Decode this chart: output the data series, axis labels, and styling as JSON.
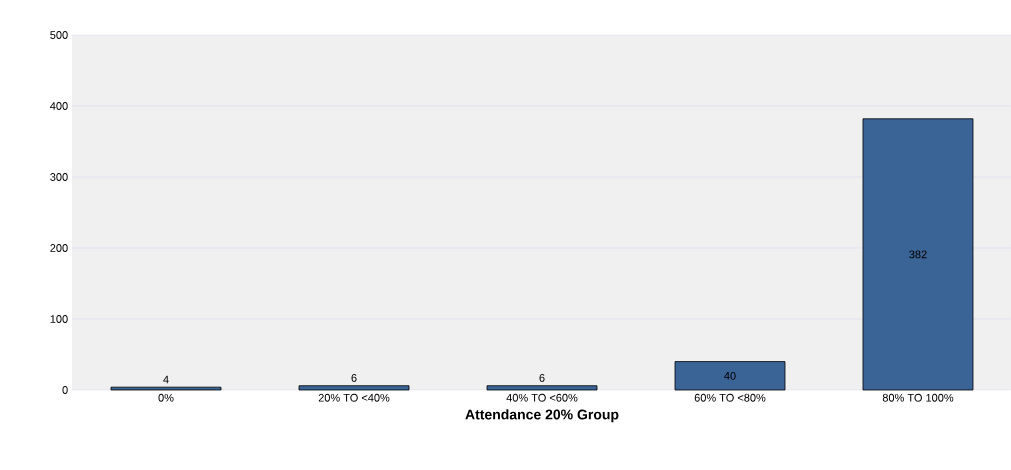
{
  "chart_data": {
    "type": "bar",
    "xlabel": "Attendance 20% Group",
    "categories": [
      "0%",
      "20% TO <40%",
      "40% TO <60%",
      "60% TO <80%",
      "80% TO 100%"
    ],
    "values": [
      4,
      6,
      6,
      40,
      382
    ],
    "color": "#3a6496",
    "data_labels": true,
    "ylim": [
      0,
      500
    ],
    "yticks": [
      0,
      100,
      200,
      300,
      400,
      500
    ],
    "grid": "y"
  }
}
